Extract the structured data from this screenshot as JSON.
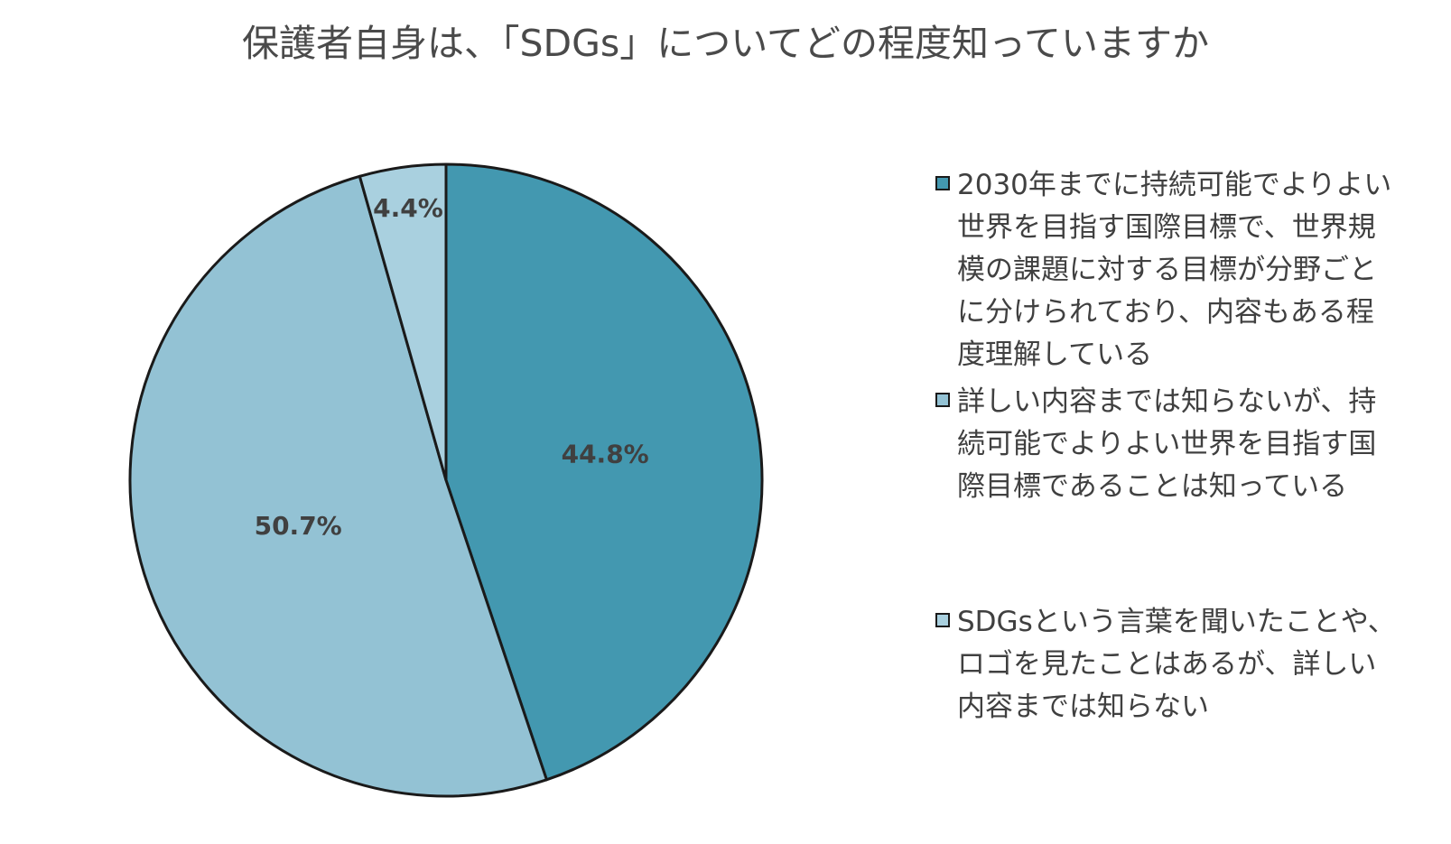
{
  "chart_data": {
    "type": "pie",
    "title": "保護者自身は、「SDGs」についてどの程度知っていますか",
    "slices": [
      {
        "label": "2030年までに持続可能でよりよい世界を目指す国際目標で、世界規模の課題に対する目標が分野ごとに分けられており、内容もある程度理解している",
        "value": 44.8,
        "display": "44.8%",
        "color": "#4398b0"
      },
      {
        "label": "詳しい内容までは知らないが、持続可能でよりよい世界を目指す国際目標であることは知っている",
        "value": 50.7,
        "display": "50.7%",
        "color": "#93c2d4"
      },
      {
        "label": "SDGsという言葉を聞いたことや、ロゴを見たことはあるが、詳しい内容までは知らない",
        "value": 4.4,
        "display": "4.4%",
        "color": "#a9d0df"
      }
    ],
    "legend_position": "right",
    "outline_color": "#1a1a1a"
  }
}
